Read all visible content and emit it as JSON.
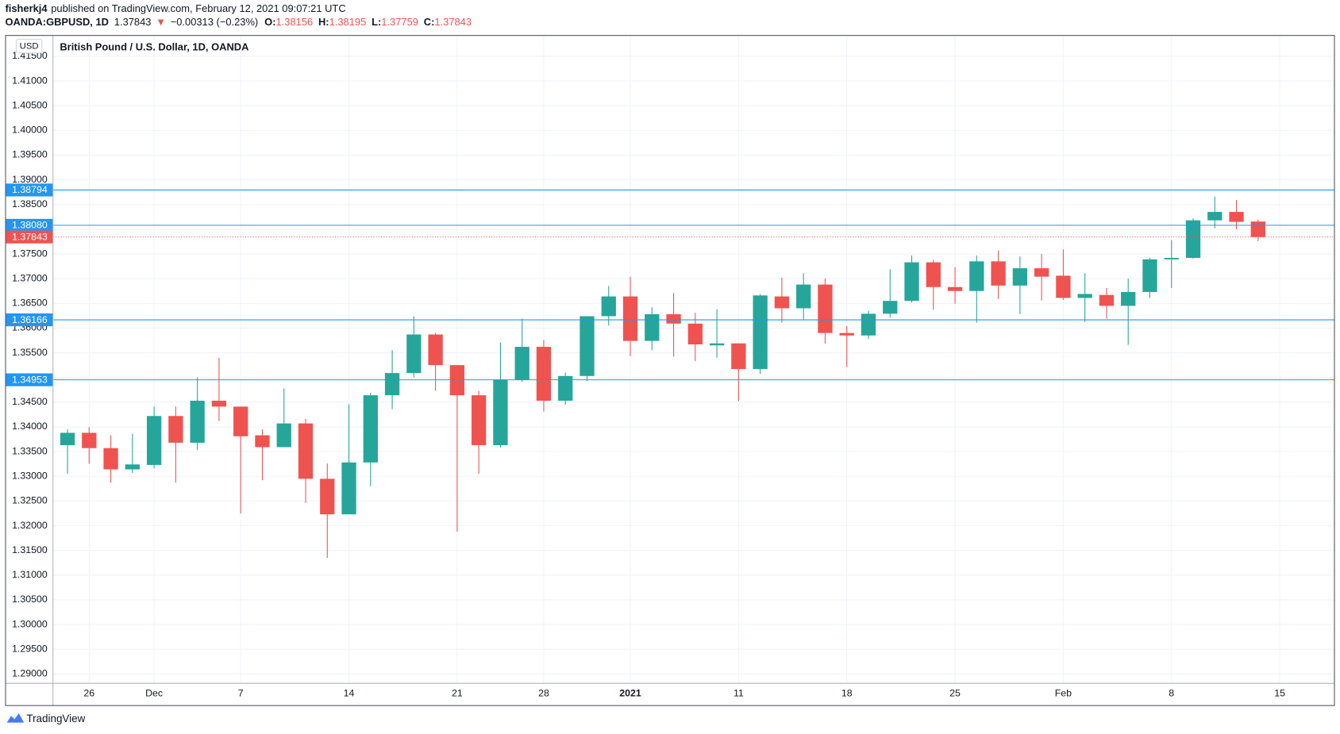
{
  "header": {
    "author": "fisherkj4",
    "published": "published on TradingView.com, February 12, 2021 09:07:21 UTC",
    "symbol": "OANDA:GBPUSD, 1D",
    "arrow": "▼",
    "change": "−0.00313 (−0.23%)",
    "ohlc_labels": [
      "O:",
      "H:",
      "L:",
      "C:"
    ]
  },
  "footer": {
    "brand": "TradingView"
  },
  "chart_data": {
    "type": "candlestick",
    "title": "British Pound / U.S. Dollar, 1D, OANDA",
    "currency": "USD",
    "categories": [
      null,
      "26",
      null,
      null,
      "Dec",
      null,
      null,
      null,
      "7",
      null,
      null,
      null,
      null,
      "14",
      null,
      null,
      null,
      null,
      "21",
      null,
      null,
      null,
      "28",
      null,
      null,
      null,
      "2021",
      null,
      null,
      null,
      null,
      "11",
      null,
      null,
      null,
      null,
      "18",
      null,
      null,
      null,
      null,
      "25",
      null,
      null,
      null,
      null,
      "Feb",
      null,
      null,
      null,
      null,
      "8",
      null,
      null,
      null,
      null,
      "15"
    ],
    "open": [
      1.3363,
      1.3388,
      1.3357,
      1.3314,
      1.3323,
      1.3422,
      1.3368,
      1.3453,
      1.3441,
      1.3383,
      1.3359,
      1.3407,
      1.3295,
      1.3223,
      1.3328,
      1.3464,
      1.3509,
      1.3587,
      1.3525,
      1.3464,
      1.3363,
      1.3495,
      1.3562,
      1.3453,
      1.3503,
      1.3624,
      1.3664,
      1.3574,
      1.3628,
      1.3609,
      1.3565,
      1.3569,
      1.3517,
      1.3664,
      1.364,
      1.3688,
      1.359,
      1.3585,
      1.3629,
      1.3655,
      1.3733,
      1.3683,
      1.3675,
      1.3735,
      1.3686,
      1.3721,
      1.3706,
      1.3661,
      1.3667,
      1.3645,
      1.3673,
      1.3739,
      1.3742,
      1.3818,
      1.3835,
      1.38156,
      null
    ],
    "high": [
      1.3395,
      1.34,
      1.3383,
      1.3386,
      1.3441,
      1.3441,
      1.35,
      1.354,
      1.3441,
      1.3395,
      1.3478,
      1.3416,
      1.3326,
      1.3446,
      1.3469,
      1.3555,
      1.3624,
      1.359,
      1.3525,
      1.3473,
      1.3571,
      1.3619,
      1.3576,
      1.351,
      1.3624,
      1.3685,
      1.3704,
      1.3642,
      1.3671,
      1.3631,
      1.3638,
      1.3569,
      1.3669,
      1.3702,
      1.3711,
      1.37,
      1.3604,
      1.3635,
      1.3719,
      1.3747,
      1.3738,
      1.3723,
      1.3747,
      1.3757,
      1.3745,
      1.375,
      1.3759,
      1.3711,
      1.3681,
      1.37,
      1.3742,
      1.3778,
      1.3822,
      1.3866,
      1.3859,
      1.38195,
      null
    ],
    "low": [
      1.3305,
      1.3325,
      1.3287,
      1.3307,
      1.3316,
      1.3287,
      1.3353,
      1.3412,
      1.3225,
      1.3292,
      1.3359,
      1.3246,
      1.3135,
      1.3223,
      1.328,
      1.3436,
      1.35,
      1.3473,
      1.3188,
      1.3305,
      1.3358,
      1.3491,
      1.3431,
      1.3445,
      1.3493,
      1.3605,
      1.3543,
      1.3555,
      1.3542,
      1.3533,
      1.354,
      1.3452,
      1.3507,
      1.3611,
      1.3617,
      1.3569,
      1.3521,
      1.3578,
      1.3621,
      1.3652,
      1.3637,
      1.3649,
      1.3611,
      1.3659,
      1.3628,
      1.3656,
      1.3657,
      1.3612,
      1.3619,
      1.3566,
      1.3661,
      1.3681,
      1.374,
      1.3802,
      1.38,
      1.37759,
      null
    ],
    "close": [
      1.3388,
      1.3357,
      1.3314,
      1.3324,
      1.3422,
      1.3368,
      1.3453,
      1.3441,
      1.3381,
      1.3359,
      1.3407,
      1.3295,
      1.3223,
      1.3328,
      1.3464,
      1.3509,
      1.3587,
      1.3525,
      1.3464,
      1.3363,
      1.3495,
      1.3562,
      1.3453,
      1.3503,
      1.3624,
      1.3664,
      1.3574,
      1.3628,
      1.3609,
      1.3567,
      1.3569,
      1.3517,
      1.3666,
      1.364,
      1.3688,
      1.359,
      1.3585,
      1.3629,
      1.3655,
      1.3733,
      1.3683,
      1.3675,
      1.3735,
      1.3686,
      1.3721,
      1.3704,
      1.3661,
      1.3669,
      1.3645,
      1.3673,
      1.3739,
      1.3742,
      1.3818,
      1.3835,
      1.3815,
      1.37843,
      null
    ],
    "up_color": "#26a69a",
    "down_color": "#ef5350",
    "ylim": [
      1.2881,
      1.4193
    ],
    "yticks": [
      {
        "value": 1.415,
        "label": "1.41500"
      },
      {
        "value": 1.41,
        "label": "1.41000"
      },
      {
        "value": 1.405,
        "label": "1.40500"
      },
      {
        "value": 1.4,
        "label": "1.40000"
      },
      {
        "value": 1.395,
        "label": "1.39500"
      },
      {
        "value": 1.39,
        "label": "1.39000"
      },
      {
        "value": 1.385,
        "label": "1.38500"
      },
      {
        "value": 1.38,
        "label": "1.38000"
      },
      {
        "value": 1.375,
        "label": "1.37500"
      },
      {
        "value": 1.37,
        "label": "1.37000"
      },
      {
        "value": 1.365,
        "label": "1.36500"
      },
      {
        "value": 1.36,
        "label": "1.36000"
      },
      {
        "value": 1.355,
        "label": "1.35500"
      },
      {
        "value": 1.35,
        "label": "1.35000"
      },
      {
        "value": 1.345,
        "label": "1.34500"
      },
      {
        "value": 1.34,
        "label": "1.34000"
      },
      {
        "value": 1.335,
        "label": "1.33500"
      },
      {
        "value": 1.33,
        "label": "1.33000"
      },
      {
        "value": 1.325,
        "label": "1.32500"
      },
      {
        "value": 1.32,
        "label": "1.32000"
      },
      {
        "value": 1.315,
        "label": "1.31500"
      },
      {
        "value": 1.31,
        "label": "1.31000"
      },
      {
        "value": 1.305,
        "label": "1.30500"
      },
      {
        "value": 1.3,
        "label": "1.30000"
      },
      {
        "value": 1.295,
        "label": "1.29500"
      },
      {
        "value": 1.29,
        "label": "1.29000"
      }
    ],
    "levels": [
      1.38794,
      {
        "value": 1.3808,
        "label": "1.38080"
      },
      1.36166,
      1.34953
    ],
    "level_color": "#2196f3",
    "grid": true
  }
}
